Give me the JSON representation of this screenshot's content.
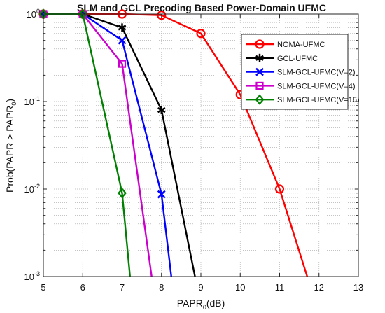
{
  "chart_data": {
    "type": "line",
    "title": "SLM and GCL Precoding Based Power-Domain UFMC",
    "xlabel": {
      "main": "PAPR",
      "sub": "0",
      "suffix": "(dB)"
    },
    "ylabel": {
      "pre": "Prob(PAPR > PAPR",
      "sub": "0",
      "post": ")"
    },
    "xlim": [
      5,
      13
    ],
    "xticks": [
      "5",
      "6",
      "7",
      "8",
      "9",
      "10",
      "11",
      "12",
      "13"
    ],
    "yscale": "log",
    "ylim": [
      0.001,
      1
    ],
    "yticks": [
      {
        "value": 1,
        "base": "10",
        "exp": "0"
      },
      {
        "value": 0.1,
        "base": "10",
        "exp": "-1"
      },
      {
        "value": 0.01,
        "base": "10",
        "exp": "-2"
      },
      {
        "value": 0.001,
        "base": "10",
        "exp": "-3"
      }
    ],
    "grid": true,
    "legend_position": "top-right",
    "series": [
      {
        "name": "NOMA-UFMC",
        "color": "#ff0000",
        "marker": "circle",
        "x": [
          5,
          6,
          7,
          8,
          9,
          10,
          11,
          11.7
        ],
        "y": [
          1,
          1,
          1,
          0.97,
          0.6,
          0.12,
          0.01,
          0.001
        ],
        "marked": [
          true,
          true,
          true,
          true,
          true,
          true,
          true,
          false
        ]
      },
      {
        "name": "GCL-UFMC",
        "color": "#000000",
        "marker": "asterisk",
        "x": [
          5,
          6,
          7,
          8,
          8.85
        ],
        "y": [
          1,
          1,
          0.7,
          0.08,
          0.001
        ],
        "marked": [
          true,
          true,
          true,
          true,
          false
        ]
      },
      {
        "name": "SLM-GCL-UFMC(V=2)",
        "color": "#0000ff",
        "marker": "x",
        "x": [
          5,
          6,
          7,
          8,
          8.25
        ],
        "y": [
          1,
          1,
          0.5,
          0.0087,
          0.001
        ],
        "marked": [
          true,
          true,
          true,
          true,
          false
        ]
      },
      {
        "name": "SLM-GCL-UFMC(V=4)",
        "color": "#cc00cc",
        "marker": "square",
        "x": [
          5,
          6,
          7,
          7.75
        ],
        "y": [
          1,
          1,
          0.27,
          0.001
        ],
        "marked": [
          true,
          true,
          true,
          false
        ]
      },
      {
        "name": "SLM-GCL-UFMC(V=16)",
        "color": "#008000",
        "marker": "diamond",
        "x": [
          5,
          6,
          7,
          7.2
        ],
        "y": [
          1,
          1,
          0.009,
          0.001
        ],
        "marked": [
          true,
          true,
          true,
          false
        ]
      }
    ]
  }
}
